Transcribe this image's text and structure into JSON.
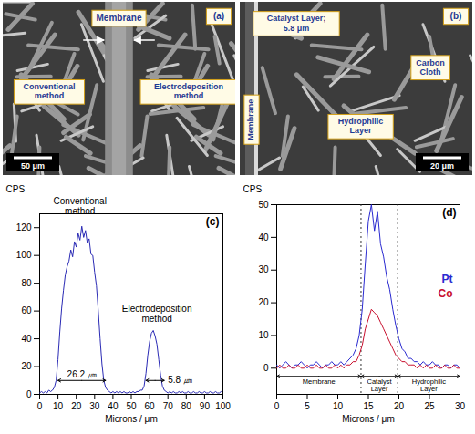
{
  "images": [
    {
      "label": "(a)",
      "texts": {
        "membrane": "Membrane",
        "left": "Conventional method",
        "right": "Electrodeposition method"
      },
      "scale_bar": "50 μm"
    },
    {
      "label": "(b)",
      "texts": {
        "catalyst": "Catalyst Layer; 5.8 μm",
        "cloth": "Carbon Cloth",
        "membrane": "Membrane",
        "hydrophilic": "Hydrophilic Layer"
      },
      "scale_bar": "20 μm"
    }
  ],
  "chart_data": [
    {
      "type": "line",
      "label": "(c)",
      "x_label": "Microns / μm",
      "y_label": "CPS",
      "x": [
        0,
        1,
        2,
        3,
        4,
        5,
        6,
        7,
        8,
        9,
        10,
        11,
        12,
        13,
        14,
        15,
        16,
        17,
        18,
        19,
        20,
        21,
        22,
        23,
        24,
        25,
        26,
        27,
        28,
        29,
        30,
        31,
        32,
        33,
        34,
        35,
        36,
        37,
        38,
        39,
        40,
        41,
        42,
        43,
        44,
        45,
        46,
        47,
        48,
        49,
        50,
        51,
        52,
        53,
        54,
        55,
        56,
        57,
        58,
        59,
        60,
        61,
        62,
        63,
        64,
        65,
        66,
        67,
        68,
        69,
        70,
        71,
        72,
        73,
        74,
        75,
        76,
        77,
        78,
        79,
        80,
        81,
        82,
        83,
        84,
        85,
        86,
        87,
        88,
        89,
        90,
        91,
        92,
        93,
        94,
        95,
        96,
        97,
        98,
        99,
        100
      ],
      "values": [
        1,
        2,
        1,
        2,
        1,
        3,
        2,
        3,
        5,
        10,
        25,
        45,
        62,
        75,
        86,
        92,
        96,
        104,
        99,
        110,
        106,
        116,
        111,
        121,
        113,
        118,
        109,
        112,
        101,
        100,
        88,
        78,
        60,
        40,
        22,
        10,
        5,
        3,
        2,
        1,
        2,
        1,
        2,
        1,
        2,
        1,
        2,
        1,
        1,
        2,
        1,
        2,
        1,
        2,
        2,
        3,
        3,
        6,
        15,
        28,
        38,
        44,
        46,
        42,
        36,
        25,
        14,
        6,
        3,
        2,
        1,
        2,
        1,
        2,
        1,
        1,
        2,
        1,
        2,
        1,
        1,
        2,
        1,
        1,
        2,
        1,
        1,
        2,
        1,
        1,
        2,
        1,
        1,
        2,
        1,
        1,
        2,
        1,
        1,
        2,
        1
      ],
      "color": "#2b2bb5",
      "xlim": [
        0,
        100
      ],
      "xticks": [
        0,
        10,
        20,
        30,
        40,
        50,
        60,
        70,
        80,
        90,
        100
      ],
      "ylim": [
        0,
        130
      ],
      "yticks": [
        0,
        20,
        40,
        60,
        80,
        100,
        120
      ],
      "annotations": [
        {
          "text": "Conventional method",
          "x": 22,
          "y": 130
        },
        {
          "text": "Electrodeposition method",
          "x": 64,
          "y": 52
        }
      ],
      "spans": [
        {
          "text": "26.2 ㎛",
          "from": 10,
          "to": 36,
          "y": 10
        },
        {
          "text": "5.8 ㎛",
          "from": 58,
          "to": 68,
          "y": 10
        }
      ]
    },
    {
      "type": "line",
      "label": "(d)",
      "x_label": "Microns / μm",
      "y_label": "CPS",
      "legend": "right",
      "x": [
        0,
        0.5,
        1,
        1.5,
        2,
        2.5,
        3,
        3.5,
        4,
        4.5,
        5,
        5.5,
        6,
        6.5,
        7,
        7.5,
        8,
        8.5,
        9,
        9.5,
        10,
        10.5,
        11,
        11.5,
        12,
        12.5,
        13,
        13.5,
        14,
        14.5,
        15,
        15.5,
        16,
        16.5,
        17,
        17.5,
        18,
        18.5,
        19,
        19.5,
        20,
        20.5,
        21,
        21.5,
        22,
        22.5,
        23,
        23.5,
        24,
        24.5,
        25,
        25.5,
        26,
        26.5,
        27,
        27.5,
        28,
        28.5,
        29,
        29.5,
        30
      ],
      "series": [
        {
          "name": "Pt",
          "color": "#2a2ad0",
          "values": [
            1,
            0,
            1,
            2,
            1,
            0,
            1,
            1,
            2,
            1,
            0,
            1,
            1,
            2,
            1,
            0,
            1,
            1,
            2,
            1,
            1,
            2,
            1,
            2,
            3,
            4,
            6,
            10,
            18,
            32,
            45,
            50,
            42,
            48,
            38,
            34,
            28,
            24,
            18,
            13,
            9,
            6,
            5,
            3,
            3,
            2,
            2,
            1,
            2,
            1,
            1,
            2,
            1,
            1,
            0,
            1,
            1,
            0,
            1,
            1,
            0
          ]
        },
        {
          "name": "Co",
          "color": "#c8102e",
          "values": [
            0,
            1,
            0,
            0,
            1,
            0,
            0,
            1,
            0,
            0,
            1,
            0,
            0,
            1,
            0,
            0,
            1,
            0,
            0,
            1,
            0,
            1,
            0,
            1,
            1,
            2,
            2,
            4,
            7,
            12,
            15,
            18,
            17,
            16,
            14,
            12,
            10,
            8,
            6,
            4,
            3,
            2,
            2,
            1,
            1,
            1,
            0,
            1,
            0,
            1,
            0,
            0,
            1,
            0,
            0,
            1,
            0,
            0,
            1,
            0,
            0
          ]
        }
      ],
      "xlim": [
        0,
        30
      ],
      "xticks": [
        0,
        5,
        10,
        15,
        20,
        25,
        30
      ],
      "ylim": [
        -8,
        50
      ],
      "yticks": [
        0,
        10,
        20,
        30,
        40,
        50
      ],
      "dividers": [
        13.8,
        19.8
      ],
      "regions": [
        {
          "text": "Membrane",
          "from": 0,
          "to": 13.8,
          "y": -2.5
        },
        {
          "text": "Catalyst Layer",
          "from": 13.8,
          "to": 19.8,
          "y": -2.5
        },
        {
          "text": "Hydrophilic Layer",
          "from": 19.8,
          "to": 30,
          "y": -2.5
        }
      ]
    }
  ]
}
